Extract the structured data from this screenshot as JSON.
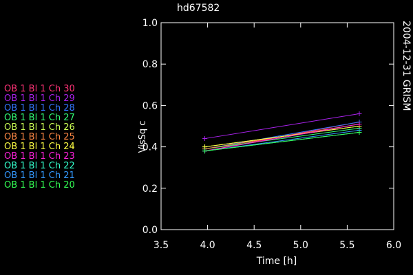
{
  "chart_data": {
    "type": "line",
    "title": "hd67582",
    "side_label": "2004-12-31 GRISM",
    "xlabel": "Time [h]",
    "ylabel": "VisSq c",
    "xlim": [
      3.5,
      6.0
    ],
    "ylim": [
      0.0,
      1.0
    ],
    "xticks": [
      "3.5",
      "4.0",
      "4.5",
      "5.0",
      "5.5",
      "6.0"
    ],
    "yticks": [
      "0.0",
      "0.2",
      "0.4",
      "0.6",
      "0.8",
      "1.0"
    ],
    "x": [
      3.97,
      5.63
    ],
    "grid": false,
    "legend_position": "left",
    "series": [
      {
        "name": "OB 1 Bl 1 Ch 30",
        "color": "#ff3377",
        "values": [
          0.38,
          0.52
        ]
      },
      {
        "name": "OB 1 Bl 1 Ch 29",
        "color": "#aa22ee",
        "values": [
          0.44,
          0.56
        ]
      },
      {
        "name": "OB 1 Bl 1 Ch 28",
        "color": "#3377ff",
        "values": [
          0.39,
          0.52
        ]
      },
      {
        "name": "OB 1 Bl 1 Ch 27",
        "color": "#33ff77",
        "values": [
          0.39,
          0.49
        ]
      },
      {
        "name": "OB 1 Bl 1 Ch 26",
        "color": "#ccff55",
        "values": [
          0.4,
          0.5
        ]
      },
      {
        "name": "OB 1 Bl 1 Ch 25",
        "color": "#ff8844",
        "values": [
          0.39,
          0.51
        ]
      },
      {
        "name": "OB 1 Bl 1 Ch 24",
        "color": "#ffff44",
        "values": [
          0.4,
          0.5
        ]
      },
      {
        "name": "OB 1 Bl 1 Ch 23",
        "color": "#ff22dd",
        "values": [
          0.38,
          0.51
        ]
      },
      {
        "name": "OB 1 Bl 1 Ch 22",
        "color": "#33ffcc",
        "values": [
          0.38,
          0.47
        ]
      },
      {
        "name": "OB 1 Bl 1 Ch 21",
        "color": "#3399ff",
        "values": [
          0.38,
          0.48
        ]
      },
      {
        "name": "OB 1 Bl 1 Ch 20",
        "color": "#33ff55",
        "values": [
          0.38,
          0.47
        ]
      }
    ]
  }
}
